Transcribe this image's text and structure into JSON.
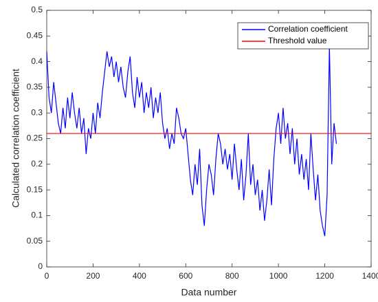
{
  "chart_data": {
    "type": "line",
    "xlabel": "Data number",
    "ylabel": "Calculated correlation coefficient",
    "xlim": [
      0,
      1400
    ],
    "xticks": [
      0,
      200,
      400,
      600,
      800,
      1000,
      1200,
      1400
    ],
    "ylim": [
      0,
      0.5
    ],
    "yticks": [
      0,
      0.05,
      0.1,
      0.15,
      0.2,
      0.25,
      0.3,
      0.35,
      0.4,
      0.45,
      0.5
    ],
    "legend": "upper right",
    "series": [
      {
        "name": "Correlation coefficient",
        "color": "#0000ff",
        "x": [
          0,
          10,
          20,
          30,
          40,
          50,
          60,
          70,
          80,
          90,
          100,
          110,
          120,
          130,
          140,
          150,
          160,
          170,
          180,
          190,
          200,
          210,
          220,
          230,
          240,
          250,
          260,
          270,
          280,
          290,
          300,
          310,
          320,
          330,
          340,
          350,
          360,
          370,
          380,
          390,
          400,
          410,
          420,
          430,
          440,
          450,
          460,
          470,
          480,
          490,
          500,
          510,
          520,
          530,
          540,
          550,
          560,
          570,
          580,
          590,
          600,
          610,
          620,
          630,
          640,
          650,
          660,
          670,
          680,
          690,
          700,
          710,
          720,
          730,
          740,
          750,
          760,
          770,
          780,
          790,
          800,
          810,
          820,
          830,
          840,
          850,
          860,
          870,
          880,
          890,
          900,
          910,
          920,
          930,
          940,
          950,
          960,
          970,
          980,
          990,
          1000,
          1010,
          1020,
          1030,
          1040,
          1050,
          1060,
          1070,
          1080,
          1090,
          1100,
          1110,
          1120,
          1130,
          1140,
          1150,
          1160,
          1170,
          1180,
          1190,
          1200,
          1210,
          1220,
          1230,
          1240,
          1250
        ],
        "values": [
          0.42,
          0.33,
          0.3,
          0.36,
          0.32,
          0.28,
          0.26,
          0.31,
          0.27,
          0.33,
          0.29,
          0.34,
          0.3,
          0.27,
          0.31,
          0.26,
          0.29,
          0.22,
          0.27,
          0.25,
          0.3,
          0.26,
          0.32,
          0.29,
          0.34,
          0.38,
          0.42,
          0.39,
          0.41,
          0.37,
          0.4,
          0.36,
          0.39,
          0.35,
          0.33,
          0.38,
          0.41,
          0.34,
          0.31,
          0.37,
          0.33,
          0.36,
          0.3,
          0.34,
          0.31,
          0.35,
          0.29,
          0.33,
          0.3,
          0.34,
          0.28,
          0.25,
          0.27,
          0.23,
          0.26,
          0.24,
          0.31,
          0.29,
          0.26,
          0.25,
          0.27,
          0.22,
          0.17,
          0.14,
          0.2,
          0.16,
          0.23,
          0.12,
          0.08,
          0.15,
          0.2,
          0.18,
          0.14,
          0.21,
          0.26,
          0.24,
          0.2,
          0.23,
          0.19,
          0.22,
          0.17,
          0.24,
          0.19,
          0.15,
          0.21,
          0.13,
          0.18,
          0.26,
          0.16,
          0.2,
          0.14,
          0.17,
          0.11,
          0.15,
          0.09,
          0.13,
          0.19,
          0.12,
          0.21,
          0.27,
          0.3,
          0.24,
          0.31,
          0.25,
          0.28,
          0.22,
          0.27,
          0.2,
          0.25,
          0.18,
          0.22,
          0.17,
          0.21,
          0.15,
          0.26,
          0.19,
          0.13,
          0.18,
          0.11,
          0.08,
          0.06,
          0.14,
          0.43,
          0.2,
          0.28,
          0.24
        ]
      },
      {
        "name": "Threshold value",
        "color": "#ff0000",
        "x": [
          0,
          1400
        ],
        "values": [
          0.26,
          0.26
        ]
      }
    ]
  }
}
